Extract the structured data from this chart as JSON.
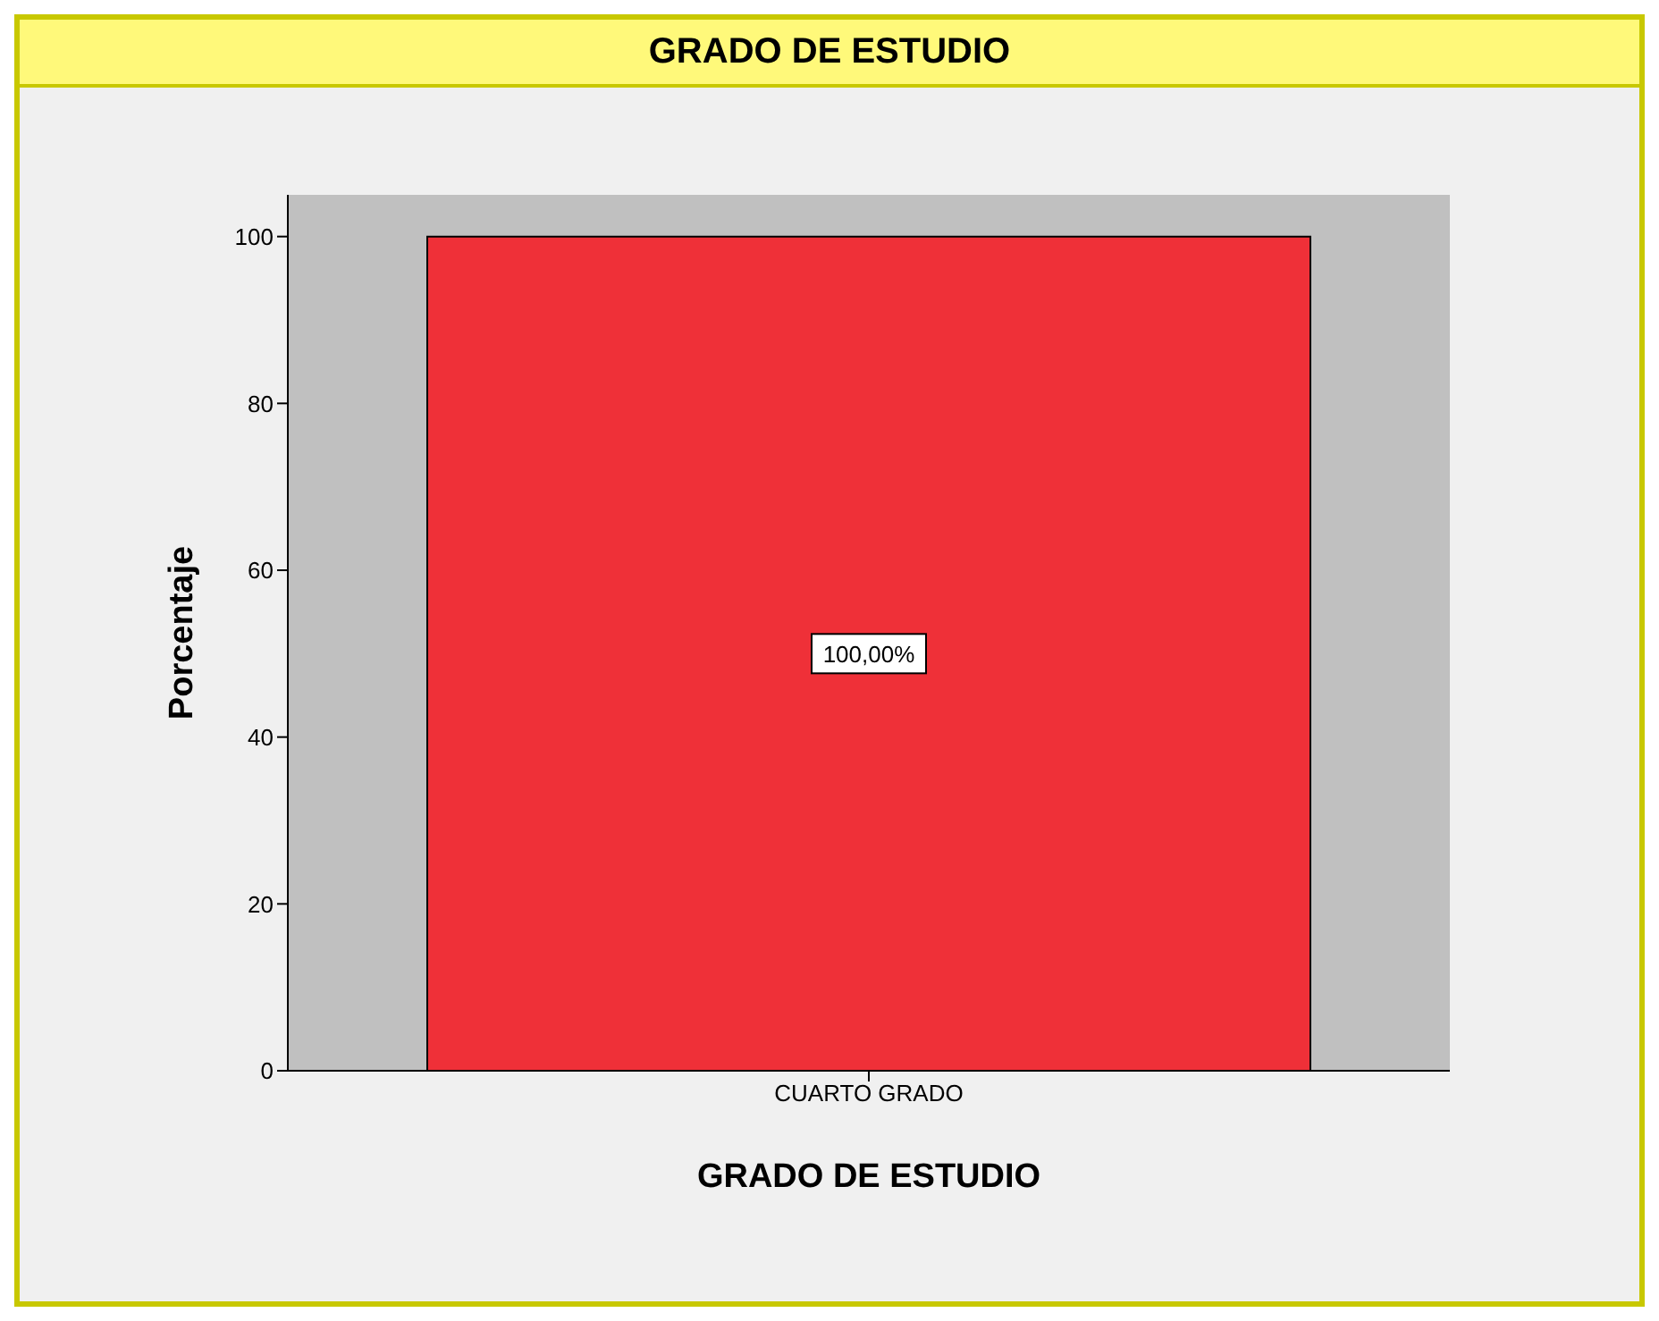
{
  "chart_data": {
    "type": "bar",
    "title": "GRADO DE ESTUDIO",
    "xlabel": "GRADO DE ESTUDIO",
    "ylabel": "Porcentaje",
    "categories": [
      "CUARTO GRADO"
    ],
    "values": [
      100
    ],
    "value_labels": [
      "100,00%"
    ],
    "color": "#ef3038",
    "ylim": [
      0,
      105
    ],
    "yticks": [
      0,
      20,
      40,
      60,
      80,
      100
    ]
  }
}
